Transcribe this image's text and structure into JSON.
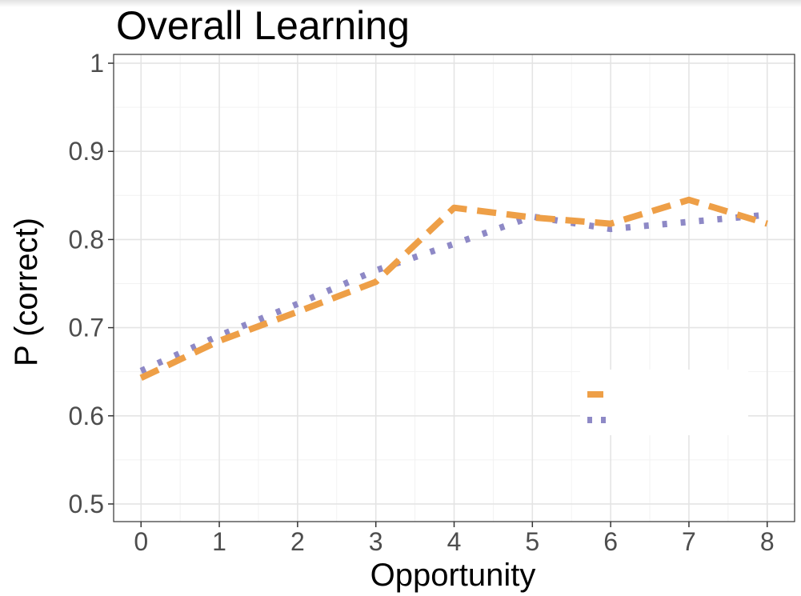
{
  "chart_data": {
    "type": "line",
    "title": "Overall Learning",
    "xlabel": "Opportunity",
    "ylabel": "P (correct)",
    "x": [
      0,
      1,
      2,
      3,
      4,
      5,
      6,
      7,
      8
    ],
    "xlim": [
      -0.35,
      8.35
    ],
    "ylim": [
      0.48,
      1.01
    ],
    "x_ticks": [
      "0",
      "1",
      "2",
      "3",
      "4",
      "5",
      "6",
      "7",
      "8"
    ],
    "y_ticks": [
      0.5,
      0.6,
      0.7,
      0.8,
      0.9,
      1.0
    ],
    "y_tick_labels": [
      "0.5",
      "0.6",
      "0.7",
      "0.8",
      "0.9",
      "1"
    ],
    "grid": true,
    "legend_position": "bottom-right",
    "series": [
      {
        "color": "#EE9F47",
        "line_style": "dashed",
        "values": [
          0.643,
          0.685,
          0.718,
          0.752,
          0.836,
          0.825,
          0.818,
          0.845,
          0.818
        ]
      },
      {
        "color": "#8E89C6",
        "line_style": "dotted",
        "values": [
          0.651,
          0.691,
          0.727,
          0.765,
          0.795,
          0.826,
          0.812,
          0.82,
          0.828
        ]
      }
    ]
  }
}
